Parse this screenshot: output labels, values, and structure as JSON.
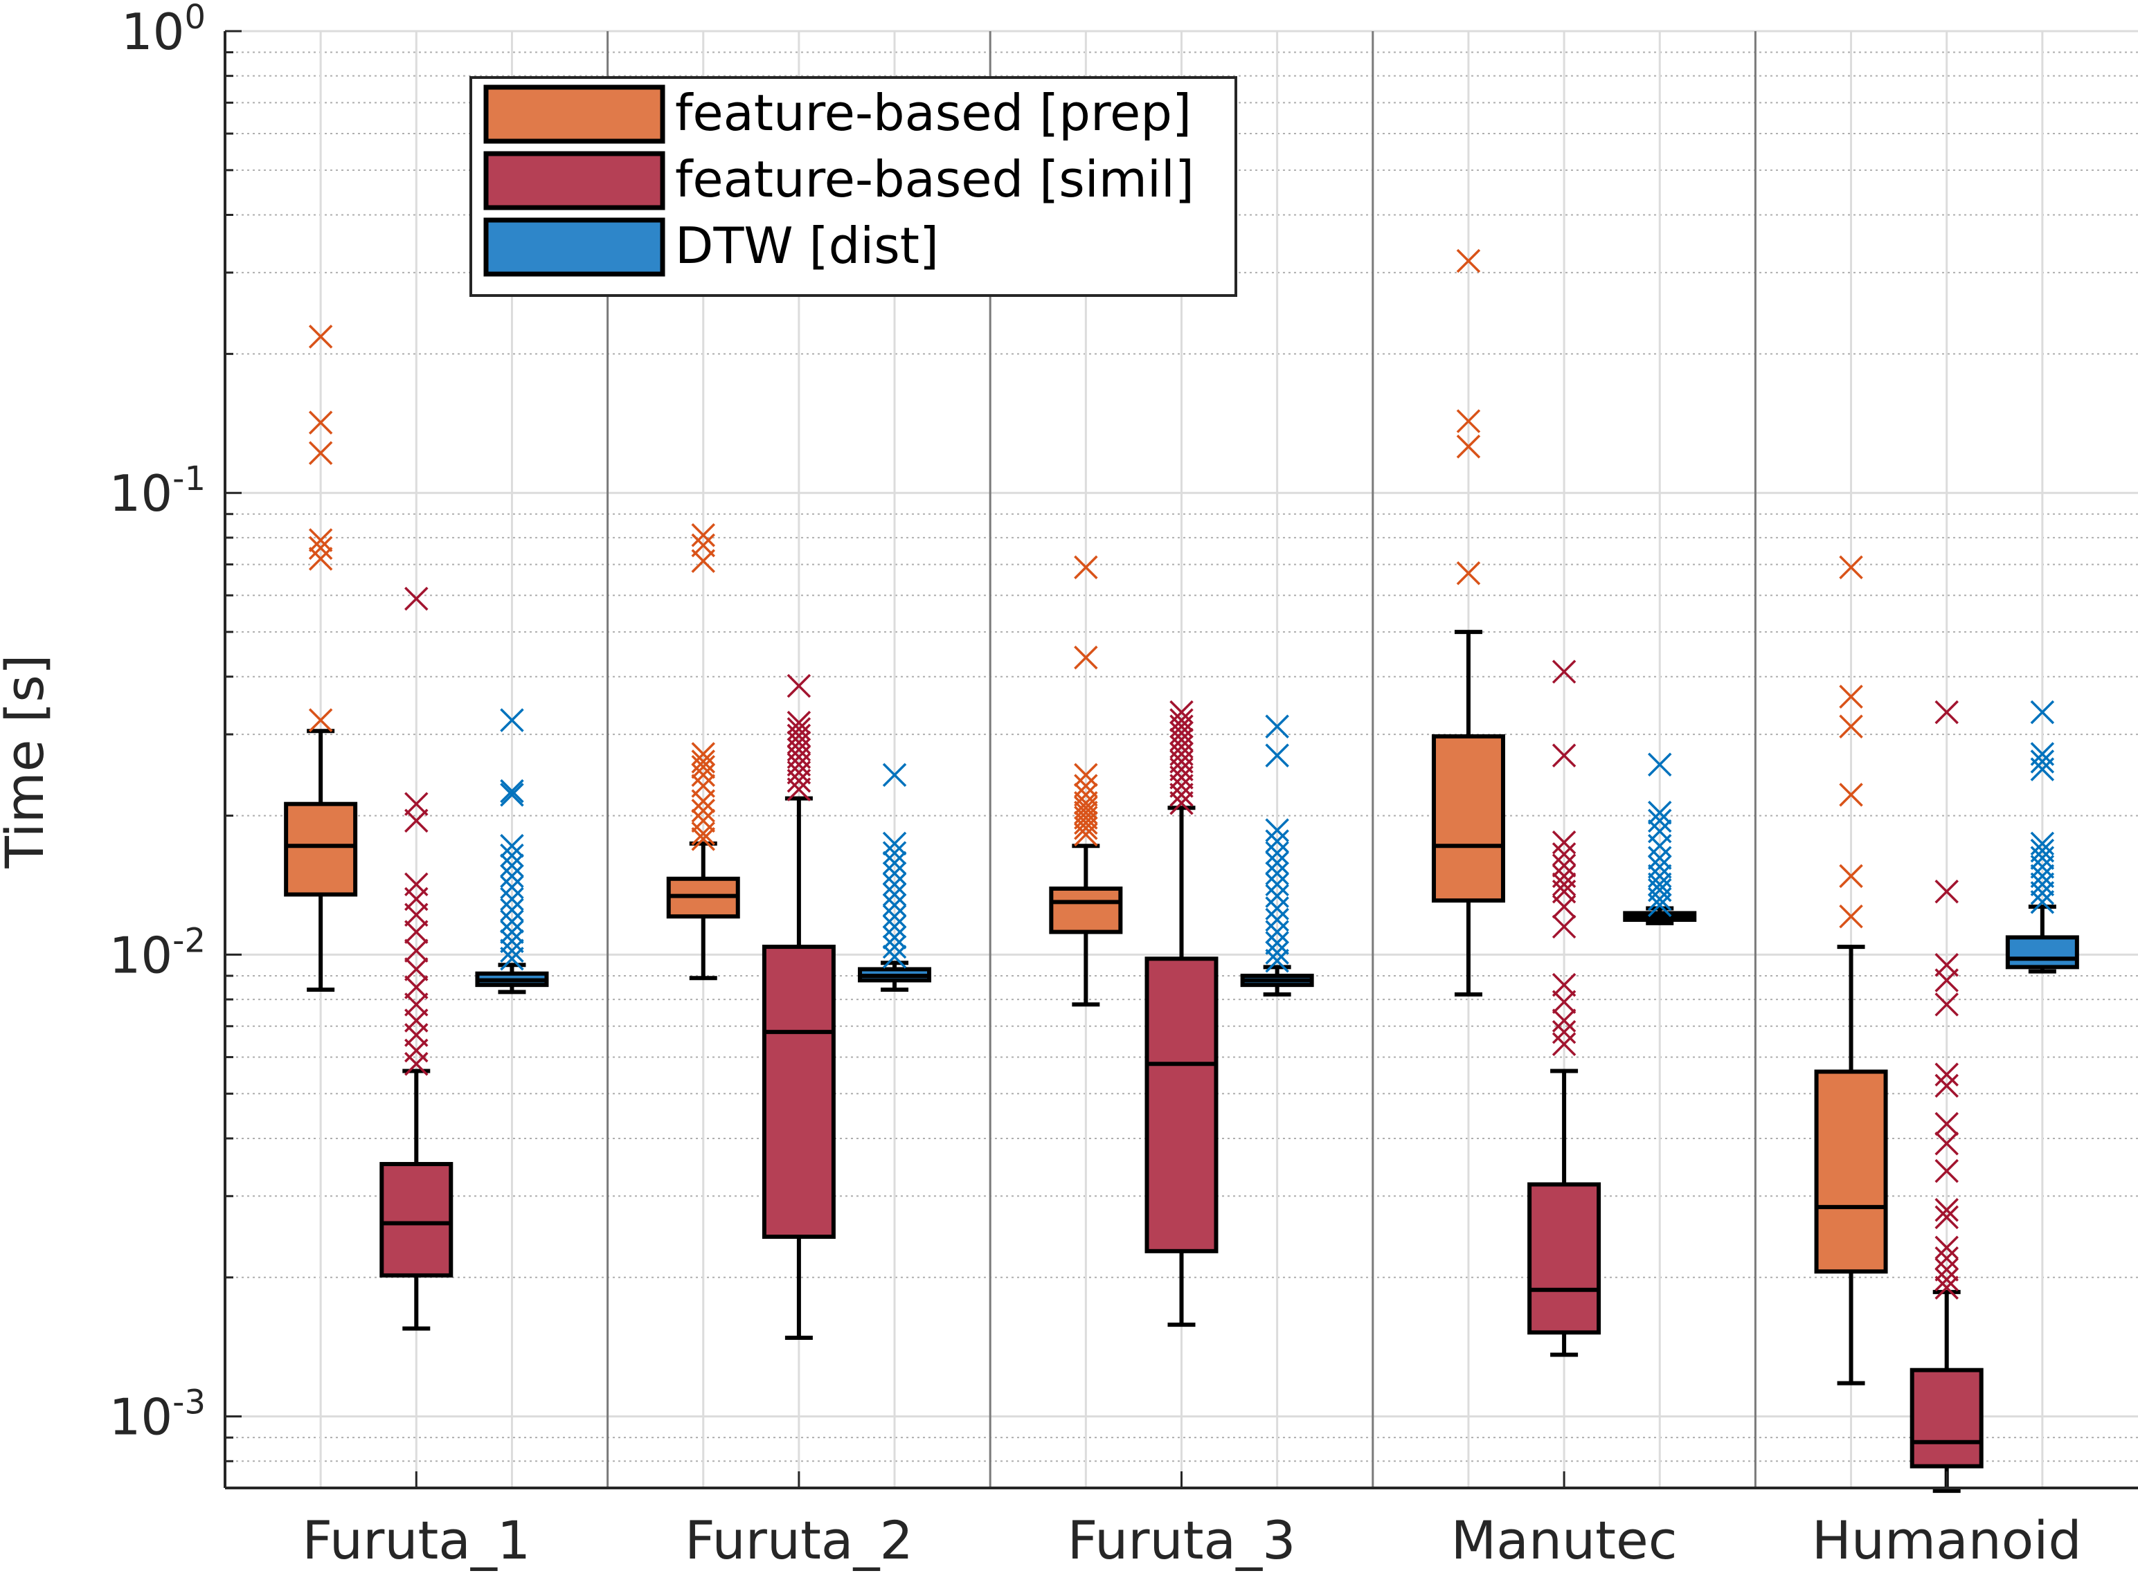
{
  "chart_data": {
    "type": "box",
    "title": "",
    "xlabel": "",
    "ylabel": "Time [s]",
    "yscale": "log",
    "ylim": [
      0.0007,
      1
    ],
    "y_ticks": [
      {
        "value": 1,
        "base": "10",
        "exp": "0"
      },
      {
        "value": 0.1,
        "base": "10",
        "exp": "-1"
      },
      {
        "value": 0.01,
        "base": "10",
        "exp": "-2"
      },
      {
        "value": 0.001,
        "base": "10",
        "exp": "-3"
      }
    ],
    "grid": true,
    "legend_position": "top-left",
    "categories": [
      "Furuta_1",
      "Furuta_2",
      "Furuta_3",
      "Manutec",
      "Humanoid"
    ],
    "series": [
      {
        "name": "feature-based [prep]",
        "color": "#E07A4A",
        "outlier_color": "#D95319",
        "boxes": [
          {
            "whisker_low": 0.0084,
            "q1": 0.0135,
            "median": 0.0172,
            "q3": 0.0212,
            "whisker_high": 0.0305,
            "outliers": [
              0.0322,
              0.072,
              0.076,
              0.079,
              0.122,
              0.142,
              0.218
            ]
          },
          {
            "whisker_low": 0.0089,
            "q1": 0.0121,
            "median": 0.0134,
            "q3": 0.0146,
            "whisker_high": 0.0174,
            "outliers": [
              0.0178,
              0.0183,
              0.0195,
              0.0205,
              0.0215,
              0.0232,
              0.0245,
              0.0255,
              0.0262,
              0.0272,
              0.0712,
              0.077,
              0.081
            ]
          },
          {
            "whisker_low": 0.0078,
            "q1": 0.0112,
            "median": 0.013,
            "q3": 0.0139,
            "whisker_high": 0.0172,
            "outliers": [
              0.0182,
              0.0188,
              0.0193,
              0.0198,
              0.0203,
              0.0208,
              0.0213,
              0.0222,
              0.0232,
              0.0245,
              0.044,
              0.069
            ]
          },
          {
            "whisker_low": 0.0082,
            "q1": 0.0131,
            "median": 0.0172,
            "q3": 0.0297,
            "whisker_high": 0.05,
            "outliers": [
              0.067,
              0.126,
              0.143,
              0.318
            ]
          },
          {
            "whisker_low": 0.00118,
            "q1": 0.00206,
            "median": 0.00284,
            "q3": 0.00558,
            "whisker_high": 0.0104,
            "outliers": [
              0.0121,
              0.0148,
              0.0222,
              0.0312,
              0.0362,
              0.069
            ]
          }
        ]
      },
      {
        "name": "feature-based [simil]",
        "color": "#B54055",
        "outlier_color": "#A2142F",
        "boxes": [
          {
            "whisker_low": 0.00155,
            "q1": 0.00202,
            "median": 0.00262,
            "q3": 0.00352,
            "whisker_high": 0.0056,
            "outliers": [
              0.0058,
              0.0062,
              0.0067,
              0.0072,
              0.0078,
              0.0085,
              0.0093,
              0.0102,
              0.0112,
              0.0122,
              0.0132,
              0.0142,
              0.0195,
              0.0212,
              0.059
            ]
          },
          {
            "whisker_low": 0.00148,
            "q1": 0.00245,
            "median": 0.0068,
            "q3": 0.0104,
            "whisker_high": 0.0218,
            "outliers": [
              0.0228,
              0.0238,
              0.0248,
              0.0258,
              0.0268,
              0.0278,
              0.0288,
              0.0298,
              0.0308,
              0.0318,
              0.0382
            ]
          },
          {
            "whisker_low": 0.00158,
            "q1": 0.00228,
            "median": 0.0058,
            "q3": 0.0098,
            "whisker_high": 0.0208,
            "outliers": [
              0.0213,
              0.0222,
              0.0232,
              0.0242,
              0.0252,
              0.0262,
              0.0272,
              0.0282,
              0.0292,
              0.0302,
              0.0312,
              0.0322,
              0.0335
            ]
          },
          {
            "whisker_low": 0.00136,
            "q1": 0.00152,
            "median": 0.00188,
            "q3": 0.00318,
            "whisker_high": 0.0056,
            "outliers": [
              0.0064,
              0.0068,
              0.0072,
              0.0079,
              0.0086,
              0.0115,
              0.0127,
              0.0137,
              0.0142,
              0.0148,
              0.0156,
              0.0165,
              0.0175,
              0.027,
              0.041
            ]
          },
          {
            "whisker_low": 0.00069,
            "q1": 0.00078,
            "median": 0.00088,
            "q3": 0.00126,
            "whisker_high": 0.00186,
            "outliers": [
              0.0019,
              0.00198,
              0.00208,
              0.0022,
              0.00232,
              0.0027,
              0.0028,
              0.0034,
              0.0039,
              0.0043,
              0.0052,
              0.0055,
              0.0078,
              0.0088,
              0.0095,
              0.0137,
              0.0335
            ]
          }
        ]
      },
      {
        "name": "DTW [dist]",
        "color": "#2E86C9",
        "outlier_color": "#0072BD",
        "boxes": [
          {
            "whisker_low": 0.0083,
            "q1": 0.0086,
            "median": 0.0088,
            "q3": 0.0091,
            "whisker_high": 0.0095,
            "outliers": [
              0.0098,
              0.0102,
              0.0107,
              0.0112,
              0.0118,
              0.0125,
              0.0132,
              0.014,
              0.0148,
              0.0156,
              0.0164,
              0.0172,
              0.0222,
              0.0226,
              0.0322
            ]
          },
          {
            "whisker_low": 0.0084,
            "q1": 0.0088,
            "median": 0.009,
            "q3": 0.0093,
            "whisker_high": 0.0096,
            "outliers": [
              0.0099,
              0.0104,
              0.0109,
              0.0115,
              0.0121,
              0.0128,
              0.0135,
              0.0142,
              0.015,
              0.0158,
              0.0166,
              0.0174,
              0.0245
            ]
          },
          {
            "whisker_low": 0.0082,
            "q1": 0.0086,
            "median": 0.0088,
            "q3": 0.009,
            "whisker_high": 0.0094,
            "outliers": [
              0.0097,
              0.0101,
              0.0106,
              0.0112,
              0.0119,
              0.0126,
              0.0134,
              0.0142,
              0.015,
              0.0158,
              0.0166,
              0.0176,
              0.0186,
              0.027,
              0.0312
            ]
          },
          {
            "whisker_low": 0.0117,
            "q1": 0.0119,
            "median": 0.0121,
            "q3": 0.0123,
            "whisker_high": 0.0126,
            "outliers": [
              0.0128,
              0.0132,
              0.0138,
              0.0142,
              0.0148,
              0.0155,
              0.0162,
              0.0172,
              0.0185,
              0.0195,
              0.0203,
              0.0258
            ]
          },
          {
            "whisker_low": 0.0092,
            "q1": 0.0094,
            "median": 0.0098,
            "q3": 0.0109,
            "whisker_high": 0.0127,
            "outliers": [
              0.013,
              0.0136,
              0.0142,
              0.0148,
              0.0155,
              0.0162,
              0.0168,
              0.0174,
              0.0252,
              0.0262,
              0.0272,
              0.0335
            ]
          }
        ]
      }
    ]
  }
}
